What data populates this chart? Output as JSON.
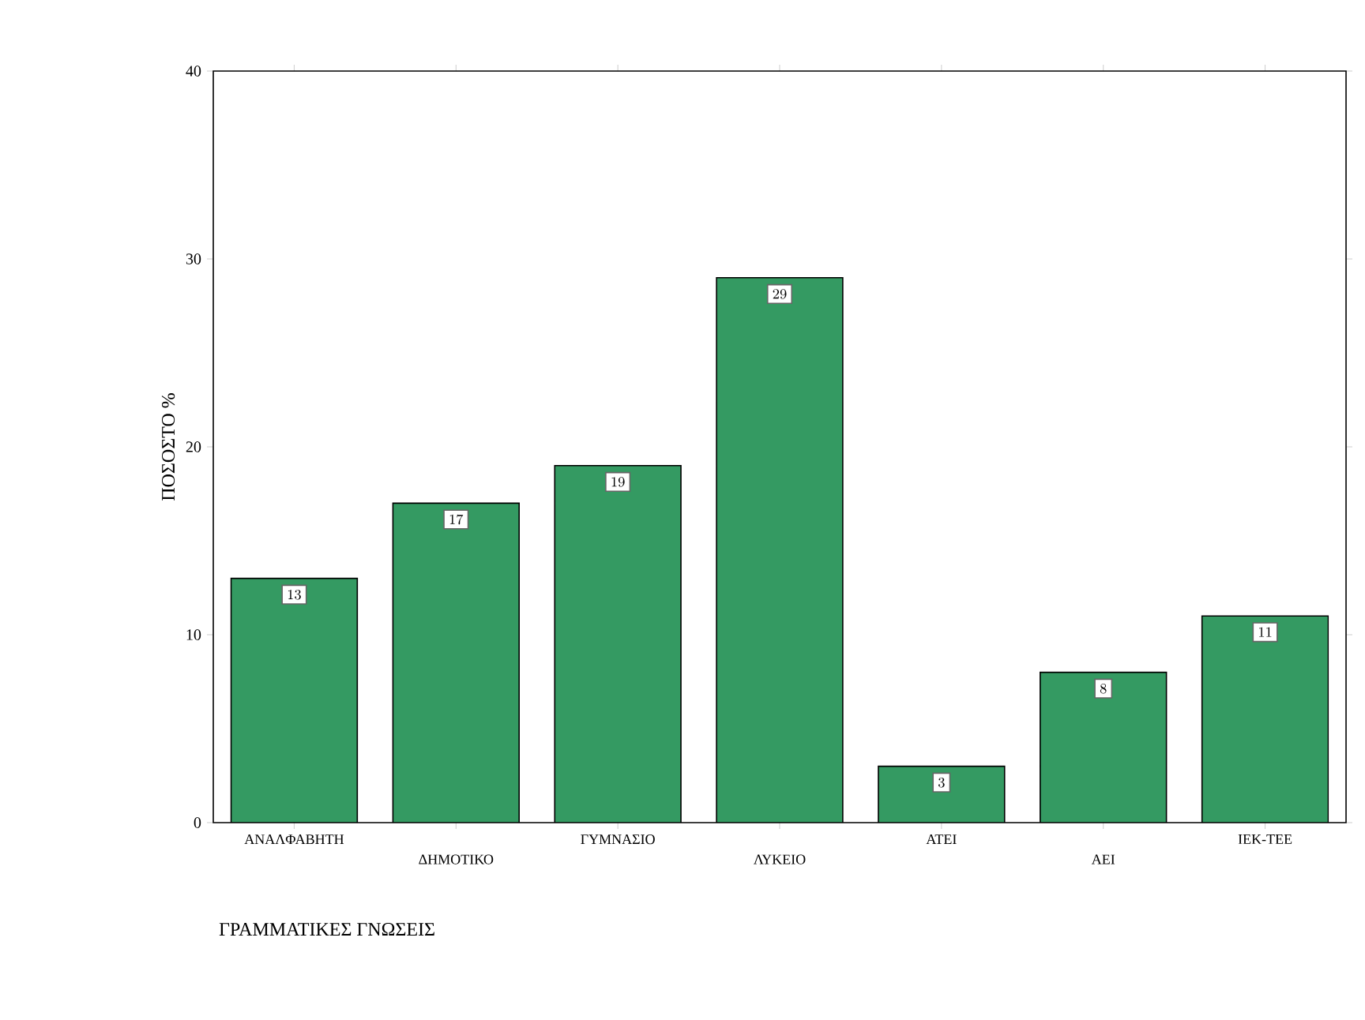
{
  "chart_data": {
    "type": "bar",
    "xlabel": "ΓΡΑΜΜΑΤΙΚΕΣ ΓΝΩΣΕΙΣ",
    "ylabel": "ΠΟΣΟΣΤΟ %",
    "categories": [
      "ΑΝΑΛΦΑΒΗΤΗ",
      "ΔΗΜΟΤΙΚΟ",
      "ΓΥΜΝΑΣΙΟ",
      "ΛΥΚΕΙΟ",
      "ΑΤΕΙ",
      "ΑΕΙ",
      "ΙΕΚ-ΤΕΕ"
    ],
    "values": [
      13,
      17,
      19,
      29,
      3,
      8,
      11
    ],
    "color": "#349a62",
    "data_labels": true,
    "ylim": [
      0,
      40
    ],
    "yticks": [
      0,
      10,
      20,
      30,
      40
    ]
  }
}
